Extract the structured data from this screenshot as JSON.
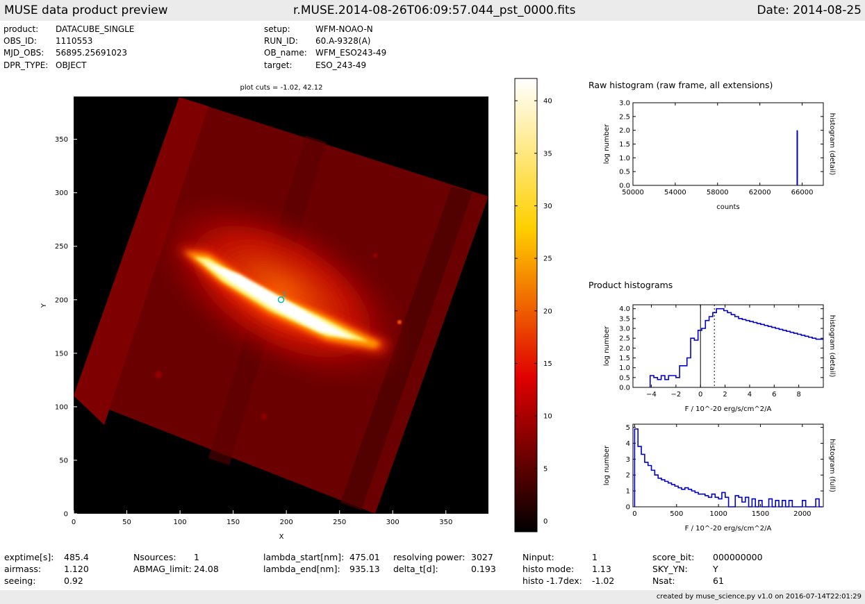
{
  "header": {
    "title": "MUSE data product preview",
    "filename": "r.MUSE.2014-08-26T06:09:57.044_pst_0000.fits",
    "date": "Date: 2014-08-25"
  },
  "meta_left": [
    {
      "key": "product:",
      "value": "DATACUBE_SINGLE"
    },
    {
      "key": "OBS_ID:",
      "value": "1110553"
    },
    {
      "key": "MJD_OBS:",
      "value": "56895.25691023"
    },
    {
      "key": "DPR_TYPE:",
      "value": "OBJECT"
    }
  ],
  "meta_right": [
    {
      "key": "setup:",
      "value": "WFM-NOAO-N"
    },
    {
      "key": "RUN_ID:",
      "value": "60.A-9328(A)"
    },
    {
      "key": "OB_name:",
      "value": "WFM_ESO243-49"
    },
    {
      "key": "target:",
      "value": "ESO_243-49"
    }
  ],
  "footer_cols": [
    [
      {
        "key": "exptime[s]:",
        "value": "485.4"
      },
      {
        "key": "airmass:",
        "value": "1.120"
      },
      {
        "key": "seeing:",
        "value": "0.92"
      }
    ],
    [
      {
        "key": "Nsources:",
        "value": "1"
      },
      {
        "key": "ABMAG_limit:",
        "value": "24.08"
      }
    ],
    [
      {
        "key": "lambda_start[nm]:",
        "value": "475.01"
      },
      {
        "key": "lambda_end[nm]:",
        "value": "935.13"
      }
    ],
    [
      {
        "key": "resolving power:",
        "value": "3027"
      },
      {
        "key": "delta_t[d]:",
        "value": "0.193"
      }
    ],
    [
      {
        "key": "Ninput:",
        "value": "1"
      },
      {
        "key": "histo mode:",
        "value": "1.13"
      },
      {
        "key": "histo -1.7dex:",
        "value": "-1.02"
      }
    ],
    [
      {
        "key": "score_bit:",
        "value": "000000000"
      },
      {
        "key": "SKY_YN:",
        "value": "Y"
      },
      {
        "key": "Nsat:",
        "value": "61"
      }
    ]
  ],
  "credit": "created by muse_science.py v1.0 on 2016-07-14T22:01:29",
  "colors": {
    "bar": "#ebebeb",
    "series": "#0000cc",
    "marker": "#00b8b8"
  },
  "chart_data": [
    {
      "type": "heatmap",
      "title": "plot cuts = -1.02, 42.12",
      "xlabel": "X",
      "ylabel": "Y",
      "xlim": [
        0,
        390
      ],
      "ylim": [
        0,
        390
      ],
      "xticks": [
        "0",
        "50",
        "100",
        "150",
        "200",
        "250",
        "300",
        "350"
      ],
      "yticks": [
        "0",
        "50",
        "100",
        "150",
        "200",
        "250",
        "300",
        "350"
      ],
      "colormap": "hot",
      "colorbar": {
        "range": [
          -1.02,
          42.12
        ],
        "ticks": [
          "0",
          "5",
          "10",
          "15",
          "20",
          "25",
          "30",
          "35",
          "40"
        ]
      },
      "source_marker": {
        "label": "1",
        "x": 195,
        "y": 200
      }
    },
    {
      "type": "line",
      "title": "Raw histogram (raw frame, all extensions)",
      "xlabel": "counts",
      "ylabel": "log number",
      "right_label": "histogram (detail)",
      "xlim": [
        50000,
        68000
      ],
      "ylim": [
        0,
        3
      ],
      "xticks": [
        "50000",
        "54000",
        "58000",
        "62000",
        "66000"
      ],
      "yticks": [
        "0.0",
        "0.5",
        "1.0",
        "1.5",
        "2.0",
        "2.5",
        "3.0"
      ],
      "series": [
        {
          "x": [
            65535
          ],
          "y": [
            2.0
          ]
        }
      ]
    },
    {
      "type": "line",
      "title": "Product histograms",
      "xlabel": "F / 10^-20 erg/s/cm^2/A",
      "ylabel": "log number",
      "right_label": "histogram (detail)",
      "xlim": [
        -5.5,
        10
      ],
      "ylim": [
        0,
        4.2
      ],
      "xticks": [
        "−4",
        "−2",
        "0",
        "2",
        "4",
        "6",
        "8"
      ],
      "yticks": [
        "0.0",
        "0.5",
        "1.0",
        "1.5",
        "2.0",
        "2.5",
        "3.0",
        "3.5",
        "4.0"
      ],
      "vlines": [
        0,
        1.13
      ],
      "series": [
        {
          "x": [
            -4.1,
            -3.8,
            -3.5,
            -3.2,
            -2.9,
            -2.6,
            -2.3,
            -2.0,
            -1.7,
            -1.4,
            -1.1,
            -0.8,
            -0.5,
            -0.2,
            0.1,
            0.4,
            0.7,
            1.0,
            1.3,
            1.6,
            1.9,
            2.2,
            2.5,
            2.8,
            3.1,
            3.4,
            3.7,
            4.0,
            4.3,
            4.6,
            4.9,
            5.2,
            5.5,
            5.8,
            6.1,
            6.4,
            6.7,
            7.0,
            7.3,
            7.6,
            7.9,
            8.2,
            8.5,
            8.8,
            9.1,
            9.4,
            9.7
          ],
          "y": [
            0.6,
            0.5,
            0.4,
            0.6,
            0.4,
            0.6,
            0.6,
            0.5,
            1.1,
            1.1,
            1.5,
            2.5,
            2.4,
            2.9,
            3.0,
            3.4,
            3.6,
            3.8,
            4.0,
            4.0,
            3.9,
            3.8,
            3.7,
            3.6,
            3.5,
            3.45,
            3.4,
            3.35,
            3.3,
            3.25,
            3.2,
            3.15,
            3.1,
            3.05,
            3.0,
            2.95,
            2.9,
            2.85,
            2.8,
            2.75,
            2.7,
            2.65,
            2.6,
            2.55,
            2.5,
            2.45,
            2.45
          ]
        }
      ]
    },
    {
      "type": "line",
      "xlabel": "F / 10^-20 erg/s/cm^2/A",
      "ylabel": "log number",
      "right_label": "histogram (full)",
      "xlim": [
        -20,
        2250
      ],
      "ylim": [
        0,
        5.2
      ],
      "xticks": [
        "0",
        "500",
        "1000",
        "1500",
        "2000"
      ],
      "yticks": [
        "0",
        "1",
        "2",
        "3",
        "4",
        "5"
      ],
      "series": [
        {
          "x": [
            0,
            40,
            80,
            120,
            160,
            200,
            240,
            280,
            320,
            360,
            400,
            440,
            480,
            520,
            560,
            600,
            640,
            680,
            720,
            760,
            800,
            840,
            880,
            920,
            960,
            1000,
            1040,
            1080,
            1120,
            1160,
            1200,
            1240,
            1280,
            1320,
            1360,
            1400,
            1440,
            1480,
            1520,
            1560,
            1600,
            1640,
            1680,
            1720,
            1760,
            1800,
            1840,
            1880,
            1920,
            1960,
            2000,
            2040,
            2080,
            2120,
            2160,
            2200
          ],
          "y": [
            4.9,
            3.8,
            3.3,
            2.8,
            2.6,
            2.3,
            2.0,
            1.8,
            1.7,
            1.6,
            1.5,
            1.4,
            1.3,
            1.2,
            1.1,
            1.2,
            1.1,
            1.0,
            0.9,
            0.8,
            0.8,
            0.7,
            0.6,
            0.8,
            0.6,
            0.5,
            0.9,
            0.6,
            0.0,
            0.0,
            0.7,
            0.6,
            0.3,
            0.6,
            0.0,
            0.5,
            0.0,
            0.4,
            0.0,
            0.0,
            0.5,
            0.0,
            0.4,
            0.0,
            0.4,
            0.0,
            0.4,
            0.0,
            0.0,
            0.0,
            0.4,
            0.0,
            0.0,
            0.0,
            0.5,
            0.0
          ]
        }
      ]
    }
  ]
}
